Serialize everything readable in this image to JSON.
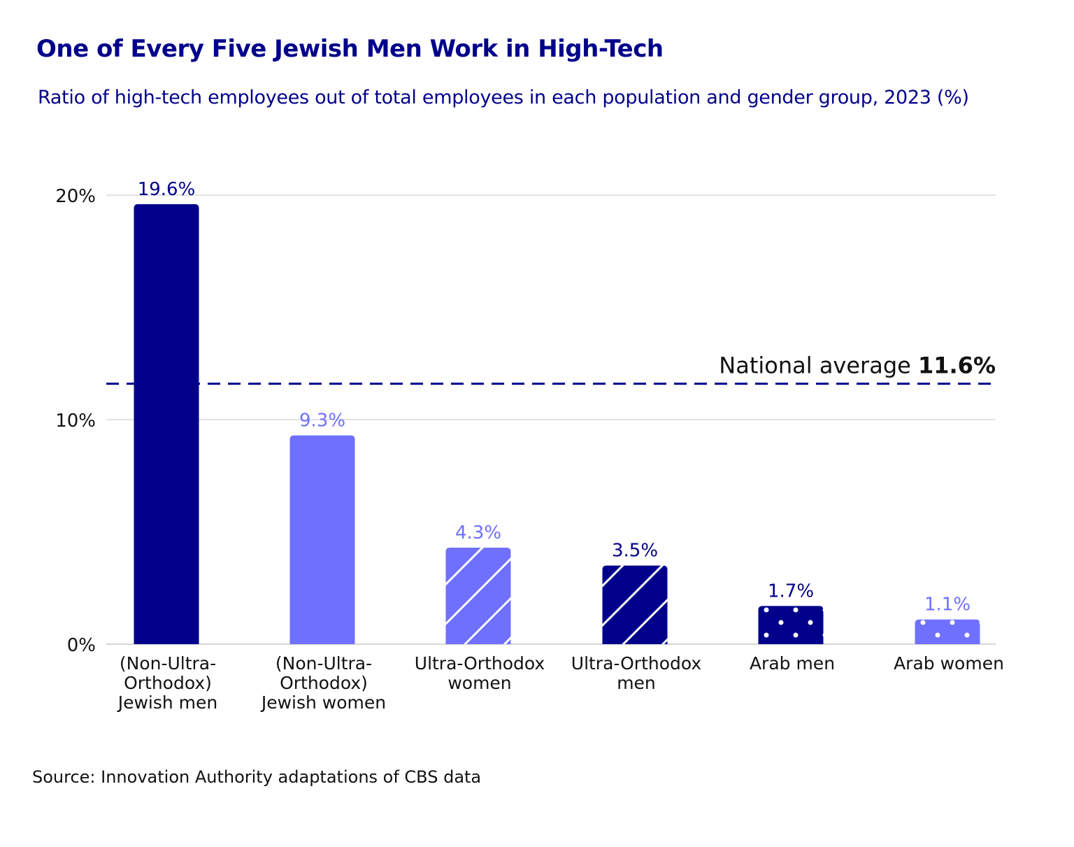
{
  "title": "One of Every Five Jewish Men Work in High-Tech",
  "subtitle": "Ratio of high-tech employees out of total employees in each population and gender group, 2023 (%)",
  "source": "Source: Innovation Authority adaptations of CBS data",
  "colors": {
    "dark": "#00008b",
    "light": "#7070ff",
    "grid": "#d9d9de"
  },
  "chart_data": {
    "type": "bar",
    "categories": [
      [
        "(Non-Ultra-",
        "Orthodox)",
        "Jewish men"
      ],
      [
        "(Non-Ultra-",
        "Orthodox)",
        "Jewish women"
      ],
      [
        "Ultra-Orthodox",
        "women"
      ],
      [
        "Ultra-Orthodox",
        "men"
      ],
      [
        "Arab men"
      ],
      [
        "Arab women"
      ]
    ],
    "values": [
      19.6,
      9.3,
      4.3,
      3.5,
      1.7,
      1.1
    ],
    "value_labels": [
      "19.6%",
      "9.3%",
      "4.3%",
      "3.5%",
      "1.7%",
      "1.1%"
    ],
    "bar_styles": [
      {
        "color": "dark",
        "pattern": "solid"
      },
      {
        "color": "light",
        "pattern": "solid"
      },
      {
        "color": "light",
        "pattern": "diagonal-stripes"
      },
      {
        "color": "dark",
        "pattern": "diagonal-stripes"
      },
      {
        "color": "dark",
        "pattern": "dots"
      },
      {
        "color": "light",
        "pattern": "dots"
      }
    ],
    "yticks": [
      0,
      10,
      20
    ],
    "ytick_labels": [
      "0%",
      "10%",
      "20%"
    ],
    "ylim": [
      0,
      20
    ],
    "grid": true,
    "reference_line": {
      "value": 11.6,
      "label": "National average",
      "value_label": "11.6%",
      "style": "dashed"
    },
    "xlabel": "",
    "ylabel": ""
  }
}
